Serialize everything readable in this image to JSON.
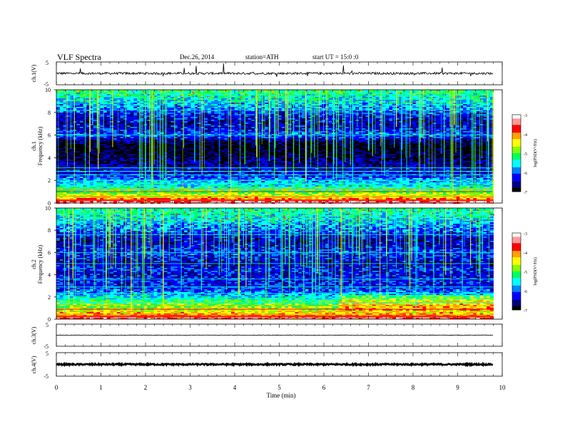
{
  "header": {
    "title": "VLF  Spectra",
    "date": "Dec.26, 2014",
    "station": "station=ATH",
    "start": "start  UT =    15:0  :0"
  },
  "chart_data": [
    {
      "type": "line",
      "name": "ch1-waveform",
      "ylabel": "ch.1(V)",
      "ylim": [
        -5,
        5
      ],
      "yticks": [
        "5",
        "-5"
      ],
      "xlim": [
        0,
        10
      ],
      "series_extent_x": [
        0,
        9.8
      ],
      "baseline": 0,
      "noise_amplitude": 0.5,
      "spikes": true,
      "color": "#000000"
    },
    {
      "type": "heatmap",
      "name": "ch1-spectrogram",
      "ylabel_top": "ch.1",
      "ylabel": "Frequency (kHz)",
      "ylim": [
        0,
        10
      ],
      "yticks": [
        "0",
        "2",
        "4",
        "6",
        "8",
        "10"
      ],
      "xlim": [
        0,
        10
      ],
      "data_extent_x": [
        0,
        9.8
      ],
      "colorbar": {
        "label": "log(PSD(V²/Hz)",
        "range": [
          -7,
          -3
        ],
        "ticks": [
          "-3",
          "-4",
          "-5",
          "-6",
          "-7"
        ]
      },
      "profile_freq_khz": [
        0,
        0.5,
        1,
        1.5,
        2,
        2.5,
        3,
        3.5,
        4,
        4.5,
        5,
        5.5,
        6,
        6.5,
        7,
        7.5,
        8,
        8.5,
        9,
        9.5,
        10
      ],
      "profile_logpsd": [
        -3.2,
        -4.3,
        -5.0,
        -5.5,
        -5.8,
        -6.3,
        -6.5,
        -6.6,
        -6.8,
        -6.9,
        -7.0,
        -6.7,
        -6.0,
        -6.3,
        -6.5,
        -6.4,
        -6.1,
        -5.8,
        -5.6,
        -5.4,
        -5.2
      ]
    },
    {
      "type": "heatmap",
      "name": "ch2-spectrogram",
      "ylabel_top": "ch.2",
      "ylabel": "Frequency (kHz)",
      "ylim": [
        0,
        10
      ],
      "yticks": [
        "0",
        "2",
        "4",
        "6",
        "8",
        "10"
      ],
      "xlim": [
        0,
        10
      ],
      "data_extent_x": [
        0,
        9.8
      ],
      "colorbar": {
        "label": "log(PSD(V²/Hz)",
        "range": [
          -7,
          -3
        ],
        "ticks": [
          "-3",
          "-4",
          "-5",
          "-6",
          "-7"
        ]
      },
      "profile_freq_khz": [
        0,
        0.5,
        1,
        1.5,
        2,
        2.5,
        3,
        3.5,
        4,
        4.5,
        5,
        5.5,
        6,
        6.5,
        7,
        7.5,
        8,
        8.5,
        9,
        9.5,
        10
      ],
      "profile_logpsd": [
        -3.5,
        -4.2,
        -4.8,
        -5.0,
        -5.6,
        -6.0,
        -6.3,
        -6.2,
        -6.4,
        -6.2,
        -6.6,
        -6.3,
        -6.1,
        -6.4,
        -6.5,
        -6.3,
        -6.0,
        -5.8,
        -5.6,
        -5.4,
        -5.3
      ]
    },
    {
      "type": "line",
      "name": "ch3-waveform",
      "ylabel": "ch.3(V)",
      "ylim": [
        -5,
        5
      ],
      "yticks": [
        "5",
        "-5"
      ],
      "xlim": [
        0,
        10
      ],
      "series_extent_x": [
        0,
        9.8
      ],
      "baseline": 0,
      "noise_amplitude": 0.15,
      "color": "#000000"
    },
    {
      "type": "line",
      "name": "ch4-waveform",
      "ylabel": "ch.4(V)",
      "ylim": [
        -5,
        5
      ],
      "yticks": [
        "5",
        "-5"
      ],
      "xlim": [
        0,
        10
      ],
      "series_extent_x": [
        0,
        9.8
      ],
      "baseline": 0,
      "noise_amplitude": 0.3,
      "color": "#000000"
    }
  ],
  "xaxis": {
    "label": "Time  (min)",
    "ticks": [
      "0",
      "1",
      "2",
      "3",
      "4",
      "5",
      "6",
      "7",
      "8",
      "9",
      "10"
    ],
    "range": [
      0,
      10
    ]
  },
  "colorscale": [
    "#ffffff",
    "#ff9898",
    "#ff0000",
    "#ffa000",
    "#ffff00",
    "#80ff00",
    "#00ff60",
    "#00ffff",
    "#0080ff",
    "#0000ff",
    "#00007f",
    "#000000"
  ]
}
